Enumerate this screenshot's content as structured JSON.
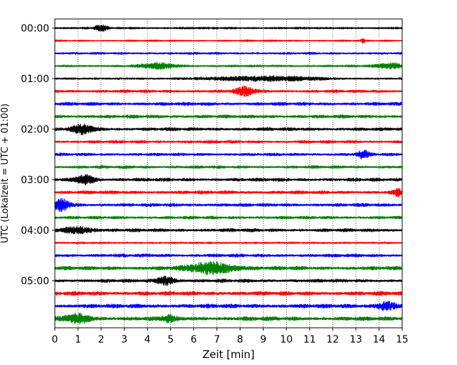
{
  "chart_data": {
    "type": "line",
    "title": "",
    "xlabel": "Zeit  [min]",
    "ylabel": "UTC (Lokalzeit = UTC + 01:00)",
    "xlim": [
      0,
      15
    ],
    "x_ticks": [
      0,
      1,
      2,
      3,
      4,
      5,
      6,
      7,
      8,
      9,
      10,
      11,
      12,
      13,
      14,
      15
    ],
    "x_tick_labels": [
      "0",
      "1",
      "2",
      "3",
      "4",
      "5",
      "6",
      "7",
      "8",
      "9",
      "10",
      "11",
      "12",
      "13",
      "14",
      "15"
    ],
    "grid": "vertical dotted at each minute",
    "rows_per_hour": 4,
    "minutes_per_row": 15,
    "y_tick_labels": [
      {
        "row": 0,
        "label": "00:00"
      },
      {
        "row": 4,
        "label": "01:00"
      },
      {
        "row": 8,
        "label": "02:00"
      },
      {
        "row": 12,
        "label": "03:00"
      },
      {
        "row": 16,
        "label": "04:00"
      },
      {
        "row": 20,
        "label": "05:00"
      }
    ],
    "trace_colors": [
      "#000000",
      "#ff0000",
      "#0000ff",
      "#008000"
    ],
    "traces": [
      {
        "start": "00:00",
        "color": "#000000",
        "amplitude": 0.15,
        "events": [
          {
            "t": 2.0,
            "amp": 0.9,
            "width": 0.45
          }
        ]
      },
      {
        "start": "00:15",
        "color": "#ff0000",
        "amplitude": 0.12,
        "events": [
          {
            "t": 13.3,
            "amp": 0.6,
            "width": 0.15
          }
        ]
      },
      {
        "start": "00:30",
        "color": "#0000ff",
        "amplitude": 0.35,
        "events": []
      },
      {
        "start": "00:45",
        "color": "#008000",
        "amplitude": 0.35,
        "events": [
          {
            "t": 4.5,
            "amp": 0.6,
            "width": 1.2
          },
          {
            "t": 14.5,
            "amp": 0.6,
            "width": 0.9
          }
        ]
      },
      {
        "start": "01:00",
        "color": "#000000",
        "amplitude": 0.25,
        "events": [
          {
            "t": 9.0,
            "amp": 0.6,
            "width": 4.0
          }
        ]
      },
      {
        "start": "01:15",
        "color": "#ff0000",
        "amplitude": 0.45,
        "events": [
          {
            "t": 8.2,
            "amp": 1.0,
            "width": 0.6
          }
        ]
      },
      {
        "start": "01:30",
        "color": "#0000ff",
        "amplitude": 0.5,
        "events": []
      },
      {
        "start": "01:45",
        "color": "#008000",
        "amplitude": 0.5,
        "events": []
      },
      {
        "start": "02:00",
        "color": "#000000",
        "amplitude": 0.5,
        "events": [
          {
            "t": 1.2,
            "amp": 1.0,
            "width": 0.7
          }
        ]
      },
      {
        "start": "02:15",
        "color": "#ff0000",
        "amplitude": 0.45,
        "events": []
      },
      {
        "start": "02:30",
        "color": "#0000ff",
        "amplitude": 0.45,
        "events": [
          {
            "t": 13.3,
            "amp": 0.8,
            "width": 0.4
          }
        ]
      },
      {
        "start": "02:45",
        "color": "#008000",
        "amplitude": 0.45,
        "events": []
      },
      {
        "start": "03:00",
        "color": "#000000",
        "amplitude": 0.5,
        "events": [
          {
            "t": 1.3,
            "amp": 1.0,
            "width": 0.6
          }
        ]
      },
      {
        "start": "03:15",
        "color": "#ff0000",
        "amplitude": 0.5,
        "events": [
          {
            "t": 14.8,
            "amp": 0.8,
            "width": 0.3
          }
        ]
      },
      {
        "start": "03:30",
        "color": "#0000ff",
        "amplitude": 0.5,
        "events": [
          {
            "t": 0.3,
            "amp": 1.3,
            "width": 0.5
          }
        ]
      },
      {
        "start": "03:45",
        "color": "#008000",
        "amplitude": 0.45,
        "events": []
      },
      {
        "start": "04:00",
        "color": "#000000",
        "amplitude": 0.5,
        "events": [
          {
            "t": 1.0,
            "amp": 0.7,
            "width": 1.0
          }
        ]
      },
      {
        "start": "04:15",
        "color": "#ff0000",
        "amplitude": 0.3,
        "events": []
      },
      {
        "start": "04:30",
        "color": "#0000ff",
        "amplitude": 0.5,
        "events": []
      },
      {
        "start": "04:45",
        "color": "#008000",
        "amplitude": 0.55,
        "events": [
          {
            "t": 6.8,
            "amp": 1.3,
            "width": 1.5
          }
        ]
      },
      {
        "start": "05:00",
        "color": "#000000",
        "amplitude": 0.5,
        "events": [
          {
            "t": 4.8,
            "amp": 1.0,
            "width": 0.6
          }
        ]
      },
      {
        "start": "05:15",
        "color": "#ff0000",
        "amplitude": 0.6,
        "events": []
      },
      {
        "start": "05:30",
        "color": "#0000ff",
        "amplitude": 0.6,
        "events": [
          {
            "t": 14.3,
            "amp": 0.9,
            "width": 0.6
          }
        ]
      },
      {
        "start": "05:45",
        "color": "#008000",
        "amplitude": 0.6,
        "events": [
          {
            "t": 1.0,
            "amp": 1.0,
            "width": 0.8
          },
          {
            "t": 4.9,
            "amp": 0.7,
            "width": 0.4
          }
        ]
      }
    ]
  }
}
